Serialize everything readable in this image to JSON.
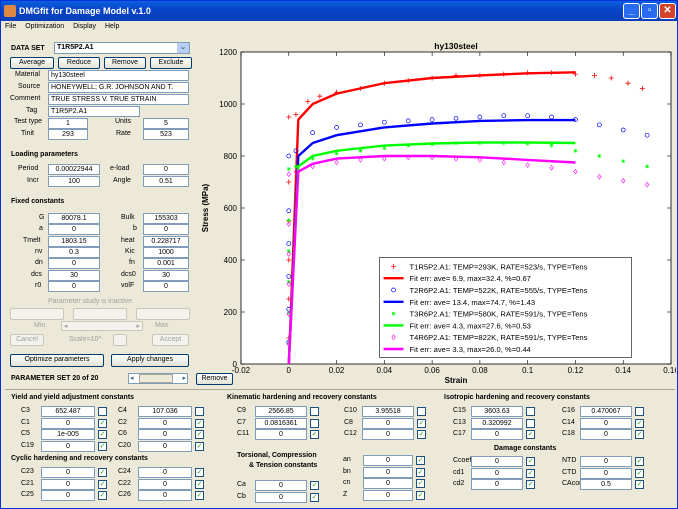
{
  "window": {
    "title": "DMGfit for Damage Model v.1.0"
  },
  "menu": [
    "File",
    "Optimization",
    "Display",
    "Help"
  ],
  "dataset": {
    "label": "DATA SET",
    "selected": "T1R5P2.A1",
    "buttons": [
      "Average",
      "Reduce",
      "Remove",
      "Exclude"
    ],
    "material_label": "Material",
    "material": "hy130steel",
    "source_label": "Source",
    "source": "HONEYWELL; G.R. JOHNSON AND T.",
    "comment_label": "Comment",
    "comment": "TRUE STRESS V. TRUE STRAIN",
    "tag_label": "Tag",
    "tag": "T1R5P2.A1",
    "testtype_label": "Test type",
    "testtype": "1",
    "units_label": "Units",
    "units": "5",
    "tinit_label": "Tinit",
    "tinit": "293",
    "rate_label": "Rate",
    "rate": "523"
  },
  "loading": {
    "title": "Loading parameters",
    "period_label": "Period",
    "period": "0.00022944",
    "eload_label": "e-load",
    "eload": "0",
    "incr_label": "Incr",
    "incr": "100",
    "angle_label": "Angle",
    "angle": "0.51"
  },
  "fixed": {
    "title": "Fixed constants",
    "rows": [
      [
        "G",
        "80078.1",
        "Bulk",
        "155303"
      ],
      [
        "a",
        "0",
        "b",
        "0"
      ],
      [
        "Tmelt",
        "1803.15",
        "heat",
        "0.228717"
      ],
      [
        "nv",
        "0.3",
        "Kic",
        "1000"
      ],
      [
        "dn",
        "0",
        "fn",
        "0.001"
      ],
      [
        "dcs",
        "30",
        "dcs0",
        "30"
      ],
      [
        "r0",
        "0",
        "volF",
        "0"
      ]
    ]
  },
  "study": {
    "inactive": "Parameter study is inactive",
    "min": "Min",
    "max": "Max",
    "cancel": "Cancel",
    "scale": "Scale=10^",
    "accept": "Accept"
  },
  "actions": {
    "optimize": "Optimize parameters",
    "apply": "Apply changes",
    "param_set": "PARAMETER SET 20 of 20",
    "remove": "Remove"
  },
  "chart_data": {
    "type": "line",
    "title": "hy130steel",
    "xlabel": "Strain",
    "ylabel": "Stress (MPa)",
    "xlim": [
      -0.02,
      0.16
    ],
    "ylim": [
      0,
      1200
    ],
    "xticks": [
      "-0.02",
      "0",
      "0.02",
      "0.04",
      "0.06",
      "0.08",
      "0.1",
      "0.12",
      "0.14",
      "0.16"
    ],
    "yticks": [
      "0",
      "200",
      "400",
      "600",
      "800",
      "1000",
      "1200"
    ],
    "legend_position": "lower-right",
    "series": [
      {
        "name": "T1R5P2.A1: TEMP=293K, RATE=523/s, TYPE=Tens",
        "marker": "+",
        "color": "#ff0000",
        "x": [
          0,
          0.003,
          0.008,
          0.013,
          0.02,
          0.03,
          0.04,
          0.05,
          0.06,
          0.07,
          0.08,
          0.09,
          0.1,
          0.11,
          0.12,
          0.128,
          0.135,
          0.142,
          0.148
        ],
        "y": [
          950,
          960,
          1010,
          1030,
          1045,
          1060,
          1080,
          1090,
          1100,
          1110,
          1110,
          1115,
          1120,
          1120,
          1115,
          1110,
          1100,
          1080,
          1060
        ]
      },
      {
        "name": "Fit err: ave= 6.9, max=32.4, %=0.67",
        "color": "#ff0000",
        "x": [
          0,
          0.004,
          0.01,
          0.02,
          0.04,
          0.06,
          0.08,
          0.1,
          0.12
        ],
        "y": [
          0,
          940,
          1000,
          1040,
          1080,
          1100,
          1110,
          1118,
          1122
        ]
      },
      {
        "name": "T2R6P2.A1: TEMP=522K, RATE=555/s, TYPE=Tens",
        "marker": "o",
        "color": "#0000ff",
        "x": [
          0,
          0.003,
          0.01,
          0.02,
          0.03,
          0.04,
          0.05,
          0.06,
          0.07,
          0.08,
          0.09,
          0.1,
          0.11,
          0.12,
          0.13,
          0.14,
          0.15
        ],
        "y": [
          800,
          820,
          890,
          910,
          920,
          930,
          935,
          940,
          945,
          950,
          955,
          955,
          950,
          940,
          920,
          900,
          880
        ]
      },
      {
        "name": "Fit err: ave= 13.4, max=74.7, %=1.43",
        "color": "#0000ff",
        "x": [
          0,
          0.004,
          0.01,
          0.02,
          0.04,
          0.06,
          0.08,
          0.1,
          0.12
        ],
        "y": [
          0,
          800,
          850,
          880,
          910,
          925,
          935,
          938,
          938
        ]
      },
      {
        "name": "T3R6P2.A1: TEMP=580K, RATE=591/s, TYPE=Tens",
        "marker": "*",
        "color": "#00ff00",
        "x": [
          0,
          0.003,
          0.01,
          0.02,
          0.03,
          0.04,
          0.05,
          0.06,
          0.07,
          0.08,
          0.09,
          0.1,
          0.11,
          0.12,
          0.13,
          0.14,
          0.15
        ],
        "y": [
          750,
          760,
          790,
          810,
          820,
          830,
          840,
          845,
          850,
          850,
          850,
          848,
          840,
          820,
          800,
          780,
          760
        ]
      },
      {
        "name": "Fit err: ave= 4.3, max=27.6, %=0.53",
        "color": "#00ff00",
        "x": [
          0,
          0.004,
          0.01,
          0.02,
          0.04,
          0.06,
          0.08,
          0.1,
          0.12
        ],
        "y": [
          0,
          760,
          800,
          820,
          840,
          848,
          852,
          852,
          850
        ]
      },
      {
        "name": "T4R6P2.A1: TEMP=822K, RATE=591/s, TYPE=Tens",
        "marker": "d",
        "color": "#ff00ff",
        "x": [
          0,
          0.003,
          0.01,
          0.02,
          0.03,
          0.04,
          0.05,
          0.06,
          0.07,
          0.08,
          0.09,
          0.1,
          0.11,
          0.12,
          0.13,
          0.14,
          0.15
        ],
        "y": [
          730,
          740,
          760,
          775,
          785,
          790,
          795,
          795,
          790,
          785,
          775,
          765,
          755,
          740,
          720,
          705,
          690
        ]
      },
      {
        "name": "Fit err: ave= 3.3, max=26.0, %=0.44",
        "color": "#ff00ff",
        "x": [
          0,
          0.004,
          0.01,
          0.02,
          0.04,
          0.06,
          0.08,
          0.1,
          0.12
        ],
        "y": [
          0,
          740,
          770,
          790,
          800,
          800,
          795,
          785,
          775
        ]
      }
    ]
  },
  "yield": {
    "title": "Yield and yield adjustment constants",
    "rows": [
      [
        "C3",
        "652.487",
        "C4",
        "107.036"
      ],
      [
        "C1",
        "0",
        "C2",
        "0"
      ],
      [
        "C5",
        "1e-005",
        "C6",
        "0"
      ],
      [
        "C19",
        "0",
        "C20",
        "0"
      ]
    ],
    "checks": [
      false,
      true,
      true,
      true
    ]
  },
  "kin": {
    "title": "Kinematic hardening and recovery constants",
    "rows": [
      [
        "C9",
        "2566.85",
        "C10",
        "3.95518"
      ],
      [
        "C7",
        "0.0816361",
        "C8",
        "0"
      ],
      [
        "C11",
        "0",
        "C12",
        "0"
      ]
    ],
    "checks1": [
      false,
      false,
      true
    ],
    "checks2": [
      false,
      true,
      true
    ]
  },
  "iso": {
    "title": "Isotropic hardening and recovery constants",
    "rows": [
      [
        "C15",
        "3603.63",
        "C16",
        "0.470067"
      ],
      [
        "C13",
        "0.320992",
        "C14",
        "0"
      ],
      [
        "C17",
        "0",
        "C18",
        "0"
      ]
    ],
    "checks1": [
      false,
      false,
      true
    ],
    "checks2": [
      false,
      true,
      true
    ]
  },
  "cyc": {
    "title": "Cyclic hardening and recovery constants",
    "rows": [
      [
        "C23",
        "0",
        "C24",
        "0"
      ],
      [
        "C21",
        "0",
        "C22",
        "0"
      ],
      [
        "C25",
        "0",
        "C26",
        "0"
      ]
    ]
  },
  "tors": {
    "title1": "Torsional, Compression",
    "title2": "& Tension constants",
    "rows": [
      [
        "Ca",
        "0"
      ],
      [
        "Cb",
        "0"
      ]
    ]
  },
  "abz": {
    "rows": [
      [
        "an",
        "0"
      ],
      [
        "bn",
        "0"
      ],
      [
        "cn",
        "0"
      ],
      [
        "Z",
        "0"
      ]
    ]
  },
  "damage": {
    "title": "Damage constants",
    "rows": [
      [
        "Ccoef",
        "0",
        "NTD",
        "0"
      ],
      [
        "cd1",
        "0",
        "CTD",
        "0"
      ],
      [
        "cd2",
        "0",
        "CAcon",
        "0.5"
      ]
    ]
  }
}
